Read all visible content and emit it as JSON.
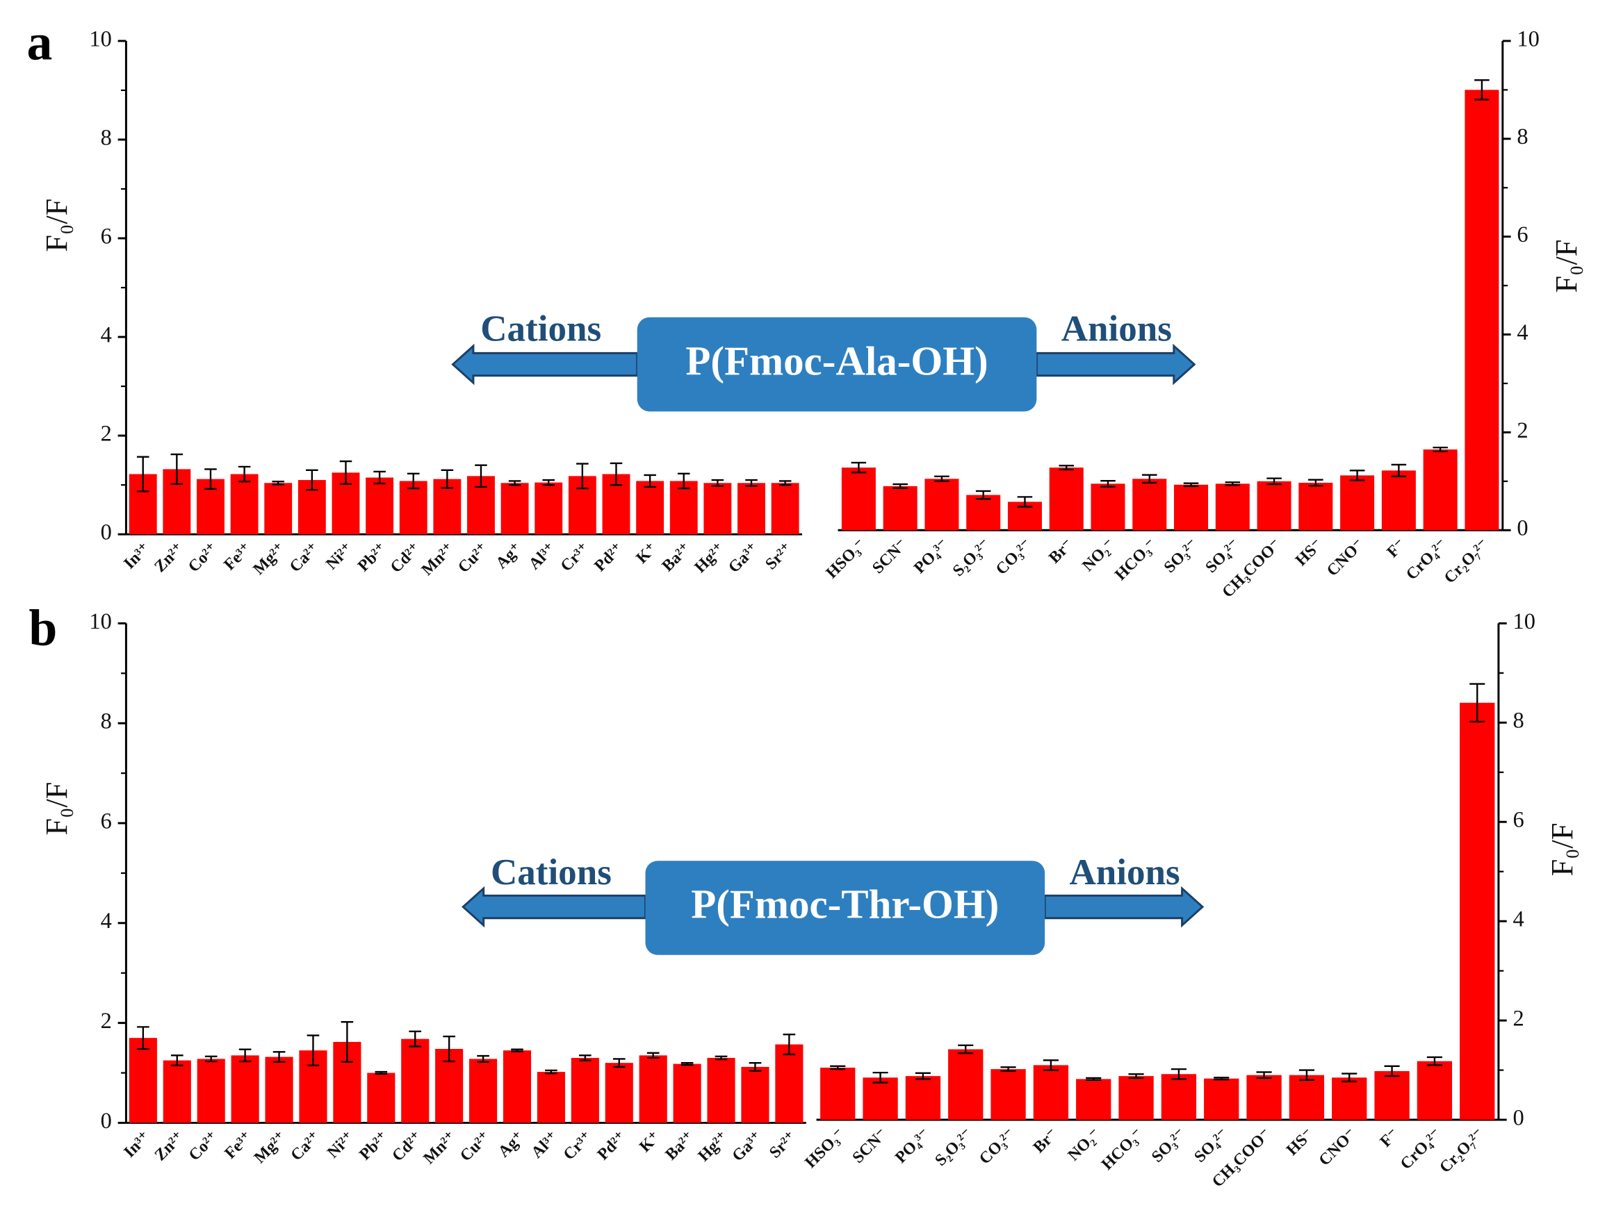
{
  "panels": [
    {
      "label": "a",
      "banner": "P(Fmoc-Ala-OH)",
      "left": "Cations",
      "right": "Anions"
    },
    {
      "label": "b",
      "banner": "P(Fmoc-Thr-OH)",
      "left": "Cations",
      "right": "Anions"
    }
  ],
  "chart_data": [
    {
      "type": "bar",
      "ylabel": "F₀/F",
      "axis_side": "left",
      "color": "#ff0000",
      "categories": [
        "In³⁺",
        "Zn²⁺",
        "Co²⁺",
        "Fe³⁺",
        "Mg²⁺",
        "Ca²⁺",
        "Ni²⁺",
        "Pb²⁺",
        "Cd²⁺",
        "Mn²⁺",
        "Cu²⁺",
        "Ag⁺",
        "Al³⁺",
        "Cr³⁺",
        "Pd²⁺",
        "K⁺",
        "Ba²⁺",
        "Hg²⁺",
        "Ga³⁺",
        "Sr²⁺"
      ],
      "values": [
        1.22,
        1.32,
        1.12,
        1.22,
        1.04,
        1.1,
        1.25,
        1.15,
        1.08,
        1.12,
        1.18,
        1.04,
        1.05,
        1.18,
        1.22,
        1.08,
        1.08,
        1.04,
        1.04,
        1.04
      ],
      "errors": [
        0.35,
        0.3,
        0.2,
        0.15,
        0.03,
        0.2,
        0.23,
        0.12,
        0.15,
        0.18,
        0.22,
        0.04,
        0.05,
        0.25,
        0.22,
        0.12,
        0.15,
        0.06,
        0.06,
        0.04
      ],
      "ylim": [
        0,
        10
      ],
      "yticks": [
        0,
        2,
        4,
        6,
        8,
        10
      ]
    },
    {
      "type": "bar",
      "ylabel": "F₀/F",
      "axis_side": "right",
      "color": "#ff0000",
      "categories": [
        "HSO₃⁻",
        "SCN⁻",
        "PO₄³⁻",
        "S₂O₃²⁻",
        "CO₃²⁻",
        "Br⁻",
        "NO₂⁻",
        "HCO₃⁻",
        "SO₃²⁻",
        "SO₄²⁻",
        "CH₃COO⁻",
        "HS⁻",
        "CNO⁻",
        "F⁻",
        "CrO₄²⁻",
        "Cr₂O₇²⁻"
      ],
      "values": [
        1.28,
        0.9,
        1.05,
        0.72,
        0.58,
        1.28,
        0.95,
        1.05,
        0.93,
        0.95,
        1.0,
        0.97,
        1.12,
        1.22,
        1.65,
        9.0
      ],
      "errors": [
        0.1,
        0.04,
        0.05,
        0.08,
        0.1,
        0.04,
        0.06,
        0.08,
        0.03,
        0.03,
        0.06,
        0.06,
        0.1,
        0.12,
        0.04,
        0.2
      ],
      "ylim": [
        0,
        10
      ],
      "yticks": [
        0,
        2,
        4,
        6,
        8,
        10
      ]
    },
    {
      "type": "bar",
      "ylabel": "F₀/F",
      "axis_side": "left",
      "color": "#ff0000",
      "categories": [
        "In³⁺",
        "Zn²⁺",
        "Co²⁺",
        "Fe³⁺",
        "Mg²⁺",
        "Ca²⁺",
        "Ni²⁺",
        "Pb²⁺",
        "Cd²⁺",
        "Mn²⁺",
        "Cu²⁺",
        "Ag⁺",
        "Al³⁺",
        "Cr³⁺",
        "Pd²⁺",
        "K⁺",
        "Ba²⁺",
        "Hg²⁺",
        "Ga³⁺",
        "Sr²⁺"
      ],
      "values": [
        1.7,
        1.25,
        1.28,
        1.35,
        1.32,
        1.45,
        1.62,
        1.0,
        1.68,
        1.48,
        1.28,
        1.45,
        1.02,
        1.3,
        1.2,
        1.35,
        1.18,
        1.3,
        1.12,
        1.57
      ],
      "errors": [
        0.22,
        0.1,
        0.05,
        0.12,
        0.1,
        0.3,
        0.4,
        0.02,
        0.15,
        0.25,
        0.06,
        0.02,
        0.03,
        0.05,
        0.08,
        0.05,
        0.02,
        0.03,
        0.08,
        0.2
      ],
      "ylim": [
        0,
        10
      ],
      "yticks": [
        0,
        2,
        4,
        6,
        8,
        10
      ]
    },
    {
      "type": "bar",
      "ylabel": "F₀/F",
      "axis_side": "right",
      "color": "#ff0000",
      "categories": [
        "HSO₃⁻",
        "SCN⁻",
        "PO₄³⁻",
        "S₂O₃²⁻",
        "CO₃²⁻",
        "Br⁻",
        "NO₂⁻",
        "HCO₃⁻",
        "SO₃²⁻",
        "SO₄²⁻",
        "CH₃COO⁻",
        "HS⁻",
        "CNO⁻",
        "F⁻",
        "CrO₄²⁻",
        "Cr₂O₇²⁻"
      ],
      "values": [
        1.05,
        0.85,
        0.88,
        1.42,
        1.02,
        1.1,
        0.82,
        0.88,
        0.92,
        0.83,
        0.9,
        0.9,
        0.85,
        0.98,
        1.18,
        8.4
      ],
      "errors": [
        0.03,
        0.1,
        0.06,
        0.08,
        0.04,
        0.1,
        0.02,
        0.04,
        0.1,
        0.02,
        0.06,
        0.1,
        0.08,
        0.1,
        0.08,
        0.38
      ],
      "ylim": [
        0,
        10
      ],
      "yticks": [
        0,
        2,
        4,
        6,
        8,
        10
      ]
    }
  ]
}
